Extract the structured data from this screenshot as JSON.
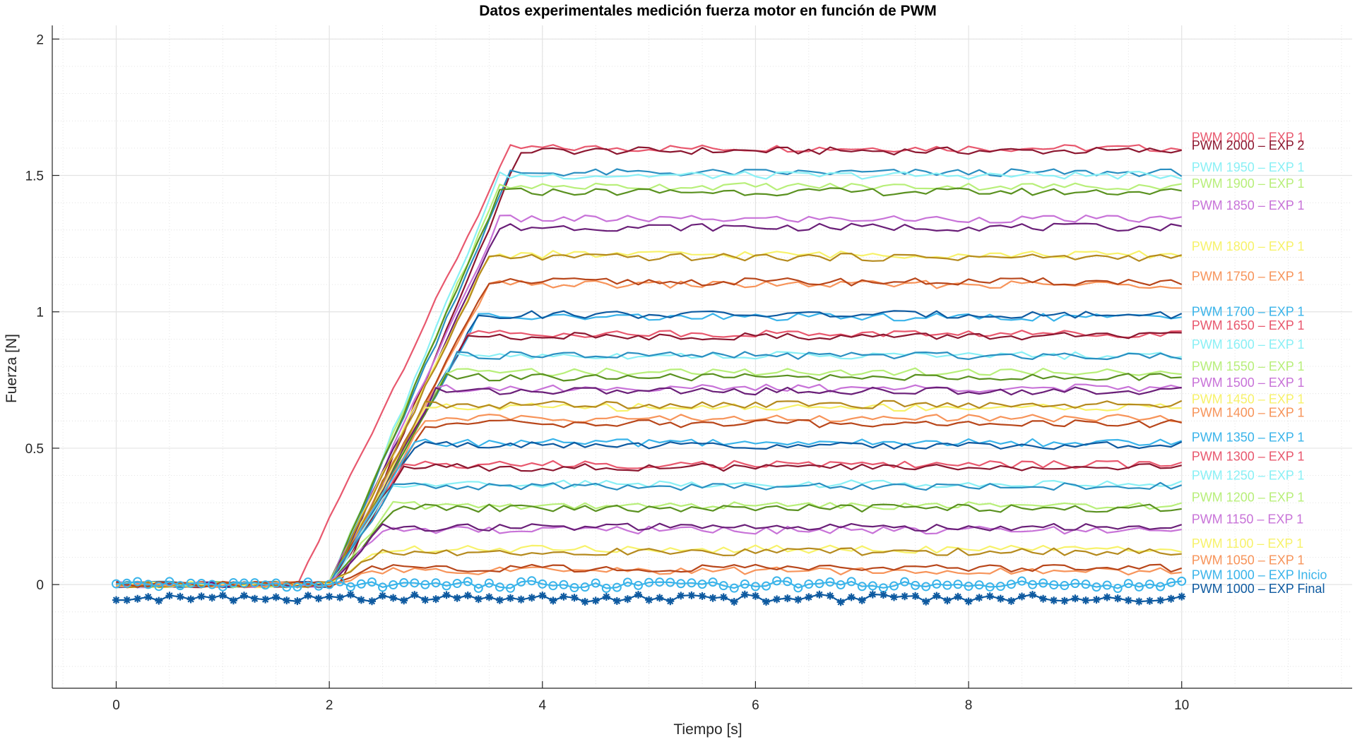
{
  "chart_data": {
    "type": "line",
    "title": "Datos experimentales medición fuerza motor en función de PWM",
    "xlabel": "Tiempo [s]",
    "ylabel": "Fuerza [N]",
    "xlim": [
      -0.6,
      11.6
    ],
    "ylim": [
      -0.38,
      2.05
    ],
    "xticks": [
      0,
      2,
      4,
      6,
      8,
      10
    ],
    "yticks": [
      0,
      0.5,
      1,
      1.5,
      2
    ],
    "yticklabels": [
      "0",
      "0.5",
      "1",
      "1.5",
      "2"
    ],
    "grid": true,
    "minor_grid": true,
    "legend_placement": "labels at right end of each series",
    "x_start": 0,
    "x_end": 10,
    "sample_step": 0.1,
    "series": [
      {
        "name": "PWM 2000 – EXP 1",
        "color": "#e8586e",
        "baseline": 0.0,
        "rise_start": 1.7,
        "rise_end": 3.7,
        "plateau": 1.6,
        "label_y": 1.64
      },
      {
        "name": "PWM 2000 – EXP 2",
        "color": "#8c1730",
        "baseline": 0.0,
        "rise_start": 2.1,
        "rise_end": 3.8,
        "plateau": 1.59,
        "label_y": 1.61
      },
      {
        "name": "",
        "color": "#2a8fc1",
        "baseline": 0.0,
        "rise_start": 2.0,
        "rise_end": 3.7,
        "plateau": 1.51,
        "label_y": null
      },
      {
        "name": "PWM 1950 – EXP 1",
        "color": "#8af0f5",
        "baseline": 0.0,
        "rise_start": 2.0,
        "rise_end": 3.6,
        "plateau": 1.5,
        "label_y": 1.53
      },
      {
        "name": "PWM 1900 – EXP 1",
        "color": "#b8ef7a",
        "baseline": 0.0,
        "rise_start": 2.0,
        "rise_end": 3.6,
        "plateau": 1.46,
        "label_y": 1.47
      },
      {
        "name": "",
        "color": "#5a9120",
        "baseline": 0.0,
        "rise_start": 2.0,
        "rise_end": 3.6,
        "plateau": 1.44,
        "label_y": null
      },
      {
        "name": "PWM 1850 – EXP 1",
        "color": "#c873d8",
        "baseline": 0.0,
        "rise_start": 2.0,
        "rise_end": 3.6,
        "plateau": 1.34,
        "label_y": 1.39
      },
      {
        "name": "",
        "color": "#6a1f78",
        "baseline": 0.0,
        "rise_start": 2.0,
        "rise_end": 3.6,
        "plateau": 1.31,
        "label_y": null
      },
      {
        "name": "PWM 1800 – EXP 1",
        "color": "#f7f26a",
        "baseline": 0.0,
        "rise_start": 2.0,
        "rise_end": 3.5,
        "plateau": 1.21,
        "label_y": 1.24
      },
      {
        "name": "",
        "color": "#b58a1e",
        "baseline": 0.0,
        "rise_start": 2.0,
        "rise_end": 3.5,
        "plateau": 1.2,
        "label_y": null
      },
      {
        "name": "PWM 1750 – EXP 1",
        "color": "#f7945a",
        "baseline": 0.0,
        "rise_start": 2.0,
        "rise_end": 3.5,
        "plateau": 1.1,
        "label_y": 1.13
      },
      {
        "name": "",
        "color": "#b8461a",
        "baseline": 0.0,
        "rise_start": 2.0,
        "rise_end": 3.5,
        "plateau": 1.11,
        "label_y": null
      },
      {
        "name": "PWM 1700 – EXP 1",
        "color": "#3ab4ea",
        "baseline": 0.0,
        "rise_start": 2.0,
        "rise_end": 3.4,
        "plateau": 0.98,
        "label_y": 1.0
      },
      {
        "name": "",
        "color": "#0e5aa0",
        "baseline": 0.0,
        "rise_start": 2.0,
        "rise_end": 3.4,
        "plateau": 0.99,
        "label_y": null
      },
      {
        "name": "PWM 1650 – EXP 1",
        "color": "#e8586e",
        "baseline": 0.0,
        "rise_start": 2.0,
        "rise_end": 3.3,
        "plateau": 0.92,
        "label_y": 0.95
      },
      {
        "name": "",
        "color": "#8c1730",
        "baseline": 0.0,
        "rise_start": 2.0,
        "rise_end": 3.3,
        "plateau": 0.91,
        "label_y": null
      },
      {
        "name": "PWM 1600 – EXP 1",
        "color": "#8af0f5",
        "baseline": 0.0,
        "rise_start": 2.0,
        "rise_end": 3.2,
        "plateau": 0.84,
        "label_y": 0.88
      },
      {
        "name": "",
        "color": "#2a8fc1",
        "baseline": 0.0,
        "rise_start": 2.0,
        "rise_end": 3.2,
        "plateau": 0.84,
        "label_y": null
      },
      {
        "name": "PWM 1550 – EXP 1",
        "color": "#b8ef7a",
        "baseline": 0.0,
        "rise_start": 2.0,
        "rise_end": 3.1,
        "plateau": 0.78,
        "label_y": 0.8
      },
      {
        "name": "",
        "color": "#5a9120",
        "baseline": 0.0,
        "rise_start": 2.0,
        "rise_end": 3.1,
        "plateau": 0.76,
        "label_y": null
      },
      {
        "name": "PWM 1500 – EXP 1",
        "color": "#c873d8",
        "baseline": 0.0,
        "rise_start": 2.0,
        "rise_end": 3.0,
        "plateau": 0.72,
        "label_y": 0.74
      },
      {
        "name": "",
        "color": "#6a1f78",
        "baseline": 0.0,
        "rise_start": 2.0,
        "rise_end": 3.0,
        "plateau": 0.71,
        "label_y": null
      },
      {
        "name": "PWM 1450 – EXP 1",
        "color": "#f7f26a",
        "baseline": 0.0,
        "rise_start": 2.0,
        "rise_end": 2.9,
        "plateau": 0.65,
        "label_y": 0.68
      },
      {
        "name": "",
        "color": "#b58a1e",
        "baseline": 0.0,
        "rise_start": 2.0,
        "rise_end": 2.9,
        "plateau": 0.66,
        "label_y": null
      },
      {
        "name": "PWM 1400 – EXP 1",
        "color": "#f7945a",
        "baseline": 0.0,
        "rise_start": 2.0,
        "rise_end": 2.9,
        "plateau": 0.61,
        "label_y": 0.63
      },
      {
        "name": "",
        "color": "#b8461a",
        "baseline": 0.0,
        "rise_start": 2.0,
        "rise_end": 2.9,
        "plateau": 0.59,
        "label_y": null
      },
      {
        "name": "PWM 1350 – EXP 1",
        "color": "#3ab4ea",
        "baseline": 0.0,
        "rise_start": 2.0,
        "rise_end": 2.8,
        "plateau": 0.52,
        "label_y": 0.54
      },
      {
        "name": "",
        "color": "#0e5aa0",
        "baseline": 0.0,
        "rise_start": 2.0,
        "rise_end": 2.8,
        "plateau": 0.51,
        "label_y": null
      },
      {
        "name": "PWM 1300 – EXP 1",
        "color": "#e8586e",
        "baseline": 0.0,
        "rise_start": 2.0,
        "rise_end": 2.7,
        "plateau": 0.44,
        "label_y": 0.47
      },
      {
        "name": "",
        "color": "#8c1730",
        "baseline": 0.0,
        "rise_start": 2.0,
        "rise_end": 2.7,
        "plateau": 0.43,
        "label_y": null
      },
      {
        "name": "PWM 1250 – EXP 1",
        "color": "#8af0f5",
        "baseline": 0.0,
        "rise_start": 2.0,
        "rise_end": 2.6,
        "plateau": 0.37,
        "label_y": 0.4
      },
      {
        "name": "",
        "color": "#2a8fc1",
        "baseline": 0.0,
        "rise_start": 2.0,
        "rise_end": 2.6,
        "plateau": 0.36,
        "label_y": null
      },
      {
        "name": "PWM 1200 – EXP 1",
        "color": "#b8ef7a",
        "baseline": 0.0,
        "rise_start": 2.0,
        "rise_end": 2.6,
        "plateau": 0.29,
        "label_y": 0.32
      },
      {
        "name": "",
        "color": "#5a9120",
        "baseline": 0.0,
        "rise_start": 2.0,
        "rise_end": 2.6,
        "plateau": 0.28,
        "label_y": null
      },
      {
        "name": "PWM 1150 – EXP 1",
        "color": "#c873d8",
        "baseline": 0.0,
        "rise_start": 2.0,
        "rise_end": 2.5,
        "plateau": 0.2,
        "label_y": 0.24
      },
      {
        "name": "",
        "color": "#6a1f78",
        "baseline": 0.0,
        "rise_start": 2.0,
        "rise_end": 2.5,
        "plateau": 0.21,
        "label_y": null
      },
      {
        "name": "PWM 1100 – EXP 1",
        "color": "#f7f26a",
        "baseline": 0.0,
        "rise_start": 2.0,
        "rise_end": 2.5,
        "plateau": 0.13,
        "label_y": 0.15
      },
      {
        "name": "",
        "color": "#b58a1e",
        "baseline": 0.0,
        "rise_start": 2.0,
        "rise_end": 2.5,
        "plateau": 0.12,
        "label_y": null
      },
      {
        "name": "PWM 1050 – EXP 1",
        "color": "#f7945a",
        "baseline": 0.0,
        "rise_start": 2.0,
        "rise_end": 2.4,
        "plateau": 0.05,
        "label_y": 0.09
      },
      {
        "name": "",
        "color": "#b8461a",
        "baseline": 0.0,
        "rise_start": 2.0,
        "rise_end": 2.4,
        "plateau": 0.06,
        "label_y": null
      },
      {
        "name": "PWM 1000 – EXP Inicio",
        "color": "#3ab4ea",
        "baseline": 0.0,
        "rise_start": 2.0,
        "rise_end": 2.1,
        "plateau": 0.0,
        "marker": "circle",
        "label_y": 0.035
      },
      {
        "name": "PWM 1000 – EXP Final",
        "color": "#0e5aa0",
        "baseline": -0.05,
        "rise_start": 2.0,
        "rise_end": 2.1,
        "plateau": -0.05,
        "marker": "star",
        "label_y": -0.015
      }
    ]
  }
}
